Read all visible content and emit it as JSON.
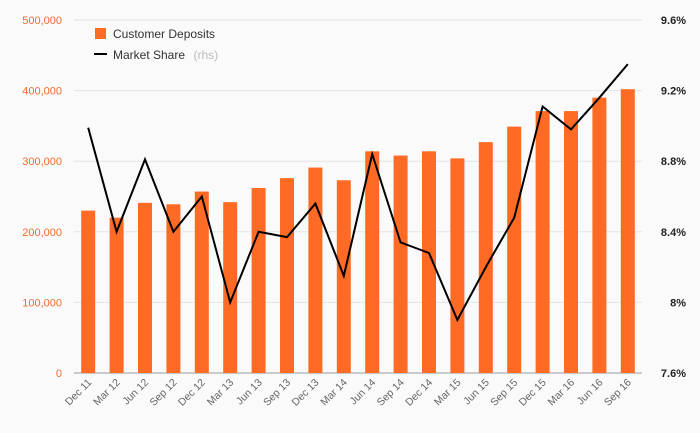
{
  "chart_data": {
    "type": "bar",
    "categories": [
      "Dec 11",
      "Mar 12",
      "Jun 12",
      "Sep 12",
      "Dec 12",
      "Mar 13",
      "Jun 13",
      "Sep 13",
      "Dec 13",
      "Mar 14",
      "Jun 14",
      "Sep 14",
      "Dec 14",
      "Mar 15",
      "Jun 15",
      "Sep 15",
      "Dec 15",
      "Mar 16",
      "Jun 16",
      "Sep 16"
    ],
    "series": [
      {
        "name": "Customer Deposits",
        "type": "bar",
        "axis": "left",
        "color": "#ff6b24",
        "values": [
          230000,
          220000,
          241000,
          239000,
          257000,
          242000,
          262000,
          276000,
          291000,
          273000,
          314000,
          308000,
          314000,
          304000,
          327000,
          349000,
          371000,
          371000,
          390000,
          402000
        ]
      },
      {
        "name": "Market Share",
        "name_suffix": "(rhs)",
        "type": "line",
        "axis": "right",
        "color": "#000000",
        "values": [
          8.99,
          8.4,
          8.81,
          8.4,
          8.6,
          8.0,
          8.4,
          8.37,
          8.56,
          8.15,
          8.84,
          8.34,
          8.28,
          7.9,
          8.2,
          8.48,
          9.11,
          8.98,
          9.16,
          9.35
        ]
      }
    ],
    "y_left": {
      "ylim": [
        0,
        500000
      ],
      "ticks": [
        "0",
        "100,000",
        "200,000",
        "300,000",
        "400,000",
        "500,000"
      ],
      "tick_values": [
        0,
        100000,
        200000,
        300000,
        400000,
        500000
      ]
    },
    "y_right": {
      "ylim": [
        7.6,
        9.6
      ],
      "ticks": [
        "7.6%",
        "8%",
        "8.4%",
        "8.8%",
        "9.2%",
        "9.6%"
      ],
      "tick_values": [
        7.6,
        8.0,
        8.4,
        8.8,
        9.2,
        9.6
      ]
    },
    "grid": true,
    "legend_position": "top-left",
    "title": "",
    "xlabel": "",
    "ylabel": ""
  }
}
